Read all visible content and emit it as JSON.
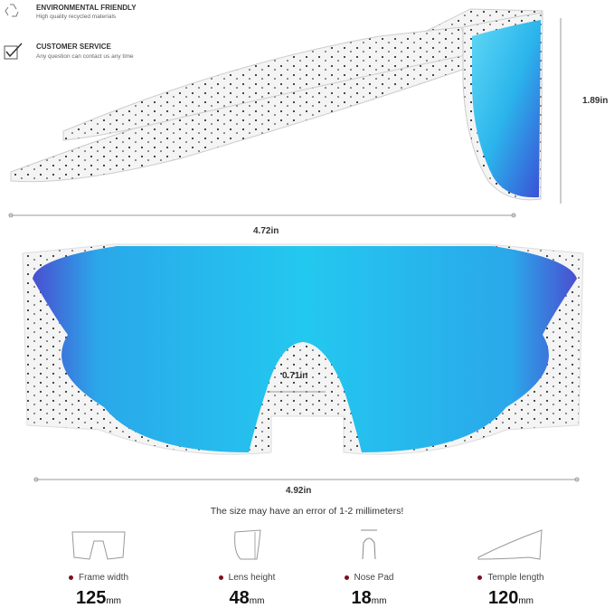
{
  "features": [
    {
      "icon": "recycle-icon",
      "title": "ENVIRONMENTAL FRIENDLY",
      "subtitle": "High quality recycled materials"
    },
    {
      "icon": "checkbox-icon",
      "title": "CUSTOMER SERVICE",
      "subtitle": "Any question can contact us any time"
    }
  ],
  "dimensions": {
    "side_height": "1.89in",
    "side_length": "4.72in",
    "bridge": "0.71in",
    "front_width": "4.92in"
  },
  "note": "The size may have an error of 1-2 millimeters!",
  "specs": [
    {
      "icon": "frame-width-icon",
      "label": "Frame width",
      "value": "125",
      "unit": "mm"
    },
    {
      "icon": "lens-height-icon",
      "label": "Lens height",
      "value": "48",
      "unit": "mm"
    },
    {
      "icon": "nose-pad-icon",
      "label": "Nose Pad",
      "value": "18",
      "unit": "mm"
    },
    {
      "icon": "temple-length-icon",
      "label": "Temple length",
      "value": "120",
      "unit": "mm"
    }
  ],
  "colors": {
    "lens_cyan": "#27c6ef",
    "lens_blue": "#3c4fd8",
    "accent_dot": "#7a1020"
  }
}
